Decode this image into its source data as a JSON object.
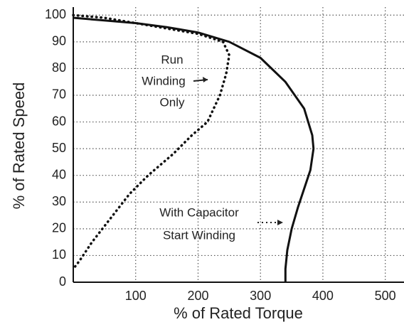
{
  "chart_data": {
    "type": "line",
    "xlabel": "% of Rated Torque",
    "ylabel": "% of Rated Speed",
    "xlim": [
      0,
      530
    ],
    "ylim": [
      0,
      103
    ],
    "xticks": [
      100,
      200,
      300,
      400,
      500
    ],
    "yticks": [
      0,
      10,
      20,
      30,
      40,
      50,
      60,
      70,
      80,
      90,
      100
    ],
    "grid": true,
    "series": [
      {
        "color": "#111111",
        "style": "dotted",
        "x": [
          0,
          50,
          100,
          150,
          200,
          240,
          250,
          245,
          235,
          215,
          190,
          160,
          120,
          90,
          60,
          30,
          10,
          0
        ],
        "values": [
          100,
          99,
          97,
          95,
          93,
          90,
          85,
          78,
          70,
          60,
          55,
          48,
          40,
          33,
          24,
          15,
          8,
          5
        ]
      },
      {
        "color": "#111111",
        "style": "solid",
        "x": [
          0,
          50,
          100,
          150,
          200,
          250,
          300,
          340,
          370,
          383,
          385,
          380,
          370,
          360,
          350,
          343,
          340,
          340
        ],
        "values": [
          99,
          98,
          97,
          95.5,
          93.5,
          90,
          84,
          75,
          65,
          55,
          50,
          42,
          35,
          28,
          20,
          12,
          5,
          0
        ]
      }
    ],
    "annotations": [
      {
        "lines": [
          "Run",
          "Winding",
          "Only"
        ]
      },
      {
        "lines": [
          "With Capacitor",
          "Start Winding"
        ]
      }
    ]
  }
}
